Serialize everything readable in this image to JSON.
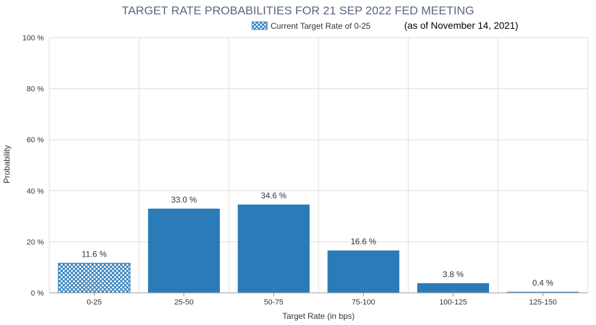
{
  "chart_data": {
    "type": "bar",
    "title": "TARGET RATE PROBABILITIES FOR 21 SEP 2022 FED MEETING",
    "note": "(as of November 14, 2021)",
    "legend": {
      "label": "Current Target Rate of 0-25",
      "placement": "top"
    },
    "xlabel": "Target Rate (in bps)",
    "ylabel": "Probability",
    "ylim": [
      0,
      100
    ],
    "yticks": [
      0,
      20,
      40,
      60,
      80,
      100
    ],
    "ytick_labels": [
      "0 %",
      "20 %",
      "40 %",
      "60 %",
      "80 %",
      "100 %"
    ],
    "grid": true,
    "categories": [
      "0-25",
      "25-50",
      "50-75",
      "75-100",
      "100-125",
      "125-150"
    ],
    "values": [
      11.6,
      33.0,
      34.6,
      16.6,
      3.8,
      0.4
    ],
    "value_labels": [
      "11.6 %",
      "33.0 %",
      "34.6 %",
      "16.6 %",
      "3.8 %",
      "0.4 %"
    ],
    "current_index": 0,
    "colors": {
      "bar": "#2b7bb9",
      "current": "#2b7bb9",
      "grid": "#dddddd",
      "axis": "#999999"
    }
  }
}
